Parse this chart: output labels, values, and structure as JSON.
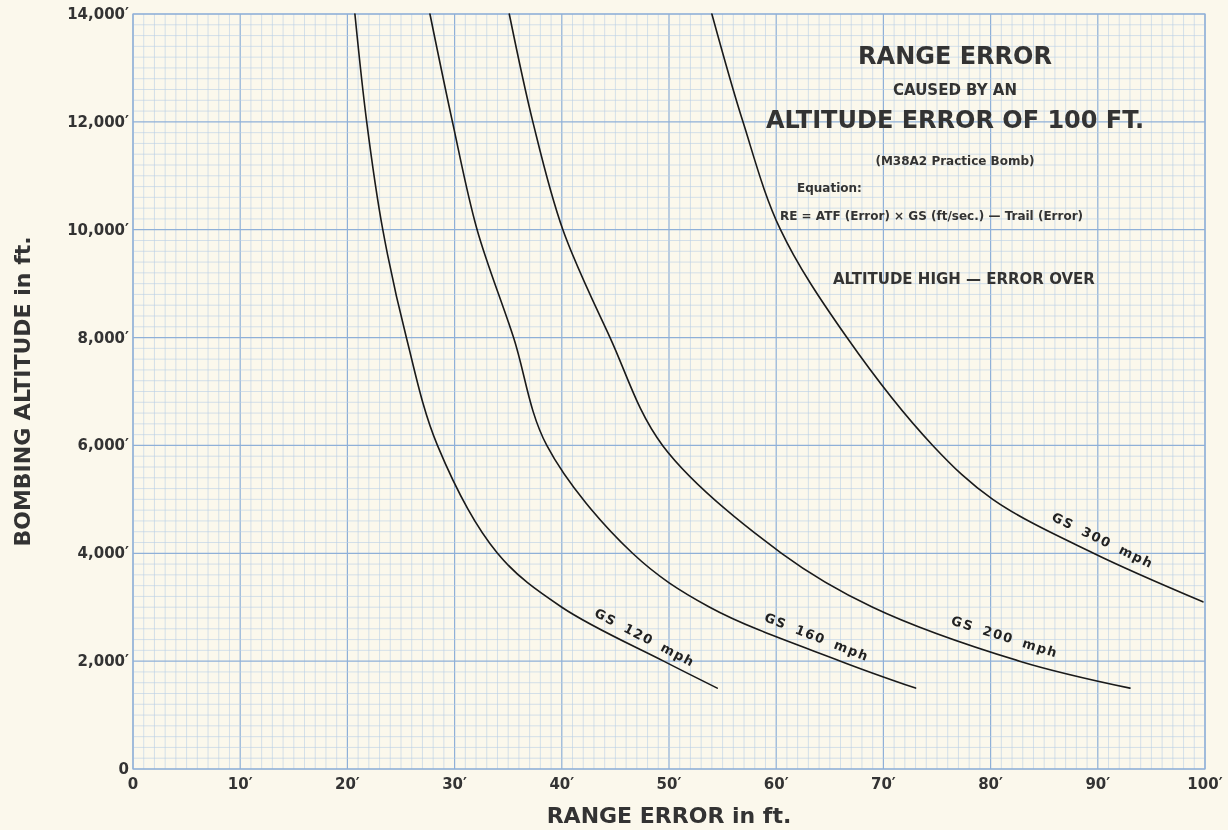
{
  "chart_data": {
    "type": "line",
    "title": "RANGE ERROR",
    "subtitle": "CAUSED BY AN",
    "xlabel": "RANGE ERROR in ft.",
    "ylabel": "BOMBING ALTITUDE in ft.",
    "annotations": [
      "ALTITUDE ERROR OF 100 FT.",
      "(M38A2 Practice Bomb)",
      "Equation:",
      "RE = ATF (Error) × GS (ft/sec.) — Trail (Error)",
      "ALTITUDE HIGH — ERROR OVER"
    ],
    "xlim": [
      0,
      100
    ],
    "ylim": [
      0,
      14000
    ],
    "xticks": [
      0,
      {
        "value": 1,
        "label": null
      },
      {
        "value": 2,
        "label": null
      },
      {
        "value": 3,
        "label": null
      },
      {
        "value": 4,
        "label": null
      },
      {
        "value": 5,
        "label": null
      },
      {
        "value": 6,
        "label": null
      },
      {
        "value": 7,
        "label": null
      },
      {
        "value": 8,
        "label": null
      },
      {
        "value": 9,
        "label": null
      },
      {
        "value": 10,
        "label": "10′"
      },
      {
        "value": 11,
        "label": null
      },
      {
        "value": 12,
        "label": null
      },
      {
        "value": 13,
        "label": null
      },
      {
        "value": 14,
        "label": null
      },
      {
        "value": 15,
        "label": null
      },
      {
        "value": 16,
        "label": null
      },
      {
        "value": 17,
        "label": null
      },
      {
        "value": 18,
        "label": null
      },
      {
        "value": 19,
        "label": null
      },
      {
        "value": 20,
        "label": "20′"
      },
      {
        "value": 21,
        "label": null
      },
      {
        "value": 22,
        "label": null
      },
      {
        "value": 23,
        "label": null
      },
      {
        "value": 24,
        "label": null
      },
      {
        "value": 25,
        "label": null
      },
      {
        "value": 26,
        "label": null
      },
      {
        "value": 27,
        "label": null
      },
      {
        "value": 28,
        "label": null
      },
      {
        "value": 29,
        "label": null
      },
      {
        "value": 30,
        "label": "30′"
      },
      {
        "value": 31,
        "label": null
      },
      {
        "value": 32,
        "label": null
      },
      {
        "value": 33,
        "label": null
      },
      {
        "value": 34,
        "label": null
      },
      {
        "value": 35,
        "label": null
      },
      {
        "value": 36,
        "label": null
      },
      {
        "value": 37,
        "label": null
      },
      {
        "value": 38,
        "label": null
      },
      {
        "value": 39,
        "label": null
      },
      {
        "value": 40,
        "label": "40′"
      },
      {
        "value": 41,
        "label": null
      },
      {
        "value": 42,
        "label": null
      },
      {
        "value": 43,
        "label": null
      },
      {
        "value": 44,
        "label": null
      },
      {
        "value": 45,
        "label": null
      },
      {
        "value": 46,
        "label": null
      },
      {
        "value": 47,
        "label": null
      },
      {
        "value": 48,
        "label": null
      },
      {
        "value": 49,
        "label": null
      },
      {
        "value": 50,
        "label": "50′"
      },
      {
        "value": 51,
        "label": null
      },
      {
        "value": 52,
        "label": null
      },
      {
        "value": 53,
        "label": null
      },
      {
        "value": 54,
        "label": null
      },
      {
        "value": 55,
        "label": null
      },
      {
        "value": 56,
        "label": null
      },
      {
        "value": 57,
        "label": null
      },
      {
        "value": 58,
        "label": null
      },
      {
        "value": 59,
        "label": null
      },
      {
        "value": 60,
        "label": "60′"
      },
      {
        "value": 61,
        "label": null
      },
      {
        "value": 62,
        "label": null
      },
      {
        "value": 63,
        "label": null
      },
      {
        "value": 64,
        "label": null
      },
      {
        "value": 65,
        "label": null
      },
      {
        "value": 66,
        "label": null
      },
      {
        "value": 67,
        "label": null
      },
      {
        "value": 68,
        "label": null
      },
      {
        "value": 69,
        "label": null
      },
      {
        "value": 70,
        "label": "70′"
      },
      {
        "value": 71,
        "label": null
      },
      {
        "value": 72,
        "label": null
      },
      {
        "value": 73,
        "label": null
      },
      {
        "value": 74,
        "label": null
      },
      {
        "value": 75,
        "label": null
      },
      {
        "value": 76,
        "label": null
      },
      {
        "value": 77,
        "label": null
      },
      {
        "value": 78,
        "label": null
      },
      {
        "value": 79,
        "label": null
      },
      {
        "value": 80,
        "label": "80′"
      },
      {
        "value": 81,
        "label": null
      },
      {
        "value": 82,
        "label": null
      },
      {
        "value": 83,
        "label": null
      },
      {
        "value": 84,
        "label": null
      },
      {
        "value": 85,
        "label": null
      },
      {
        "value": 86,
        "label": null
      },
      {
        "value": 87,
        "label": null
      },
      {
        "value": 88,
        "label": null
      },
      {
        "value": 89,
        "label": null
      },
      {
        "value": 90,
        "label": "90′"
      },
      {
        "value": 91,
        "label": null
      },
      {
        "value": 92,
        "label": null
      },
      {
        "value": 93,
        "label": null
      },
      {
        "value": 94,
        "label": null
      },
      {
        "value": 95,
        "label": null
      },
      {
        "value": 96,
        "label": null
      },
      {
        "value": 97,
        "label": null
      },
      {
        "value": 98,
        "label": null
      },
      {
        "value": 99,
        "label": null
      },
      {
        "value": 100,
        "label": "100′"
      }
    ],
    "yticks": [
      0,
      {
        "value": 200,
        "label": null
      },
      {
        "value": 400,
        "label": null
      },
      {
        "value": 600,
        "label": null
      },
      {
        "value": 800,
        "label": null
      },
      {
        "value": 1000,
        "label": null
      },
      {
        "value": 1200,
        "label": null
      },
      {
        "value": 1400,
        "label": null
      },
      {
        "value": 1600,
        "label": null
      },
      {
        "value": 1800,
        "label": null
      },
      {
        "value": 2000,
        "label": "2,000′"
      },
      {
        "value": 2200,
        "label": null
      },
      {
        "value": 2400,
        "label": null
      },
      {
        "value": 2600,
        "label": null
      },
      {
        "value": 2800,
        "label": null
      },
      {
        "value": 3000,
        "label": null
      },
      {
        "value": 3200,
        "label": null
      },
      {
        "value": 3400,
        "label": null
      },
      {
        "value": 3600,
        "label": null
      },
      {
        "value": 3800,
        "label": null
      },
      {
        "value": 4000,
        "label": "4,000′"
      },
      {
        "value": 4200,
        "label": null
      },
      {
        "value": 4400,
        "label": null
      },
      {
        "value": 4600,
        "label": null
      },
      {
        "value": 4800,
        "label": null
      },
      {
        "value": 5000,
        "label": null
      },
      {
        "value": 5200,
        "label": null
      },
      {
        "value": 5400,
        "label": null
      },
      {
        "value": 5600,
        "label": null
      },
      {
        "value": 5800,
        "label": null
      },
      {
        "value": 6000,
        "label": "6,000′"
      },
      {
        "value": 6200,
        "label": null
      },
      {
        "value": 6400,
        "label": null
      },
      {
        "value": 6600,
        "label": null
      },
      {
        "value": 6800,
        "label": null
      },
      {
        "value": 7000,
        "label": null
      },
      {
        "value": 7200,
        "label": null
      },
      {
        "value": 7400,
        "label": null
      },
      {
        "value": 7600,
        "label": null
      },
      {
        "value": 7800,
        "label": null
      },
      {
        "value": 8000,
        "label": "8,000′"
      },
      {
        "value": 8200,
        "label": null
      },
      {
        "value": 8400,
        "label": null
      },
      {
        "value": 8600,
        "label": null
      },
      {
        "value": 8800,
        "label": null
      },
      {
        "value": 9000,
        "label": null
      },
      {
        "value": 9200,
        "label": null
      },
      {
        "value": 9400,
        "label": null
      },
      {
        "value": 9600,
        "label": null
      },
      {
        "value": 9800,
        "label": null
      },
      {
        "value": 10000,
        "label": "10,000′"
      },
      {
        "value": 10200,
        "label": null
      },
      {
        "value": 10400,
        "label": null
      },
      {
        "value": 10600,
        "label": null
      },
      {
        "value": 10800,
        "label": null
      },
      {
        "value": 11000,
        "label": null
      },
      {
        "value": 11200,
        "label": null
      },
      {
        "value": 11400,
        "label": null
      },
      {
        "value": 11600,
        "label": null
      },
      {
        "value": 11800,
        "label": null
      },
      {
        "value": 12000,
        "label": "12,000′"
      },
      {
        "value": 12200,
        "label": null
      },
      {
        "value": 12400,
        "label": null
      },
      {
        "value": 12600,
        "label": null
      },
      {
        "value": 12800,
        "label": null
      },
      {
        "value": 13000,
        "label": null
      },
      {
        "value": 13200,
        "label": null
      },
      {
        "value": 13400,
        "label": null
      },
      {
        "value": 13600,
        "label": null
      },
      {
        "value": 13800,
        "label": null
      },
      {
        "value": 14000,
        "label": "14,000′"
      }
    ],
    "grid": true,
    "marker": "none",
    "line_style": "solid",
    "series": [
      {
        "name": "GS 120 mph",
        "color": "#1a1a1a",
        "x": [
          20.7,
          21.8,
          23.3,
          25.5,
          28.4,
          34,
          40,
          49.5,
          54.5
        ],
        "values": [
          14000,
          12000,
          10000,
          8000,
          6000,
          4000,
          3000,
          2000,
          1500
        ]
      },
      {
        "name": "GS 160 mph",
        "color": "#1a1a1a",
        "x": [
          27.7,
          29.8,
          32.1,
          35.5,
          38.6,
          46.6,
          53.8,
          66,
          73
        ],
        "values": [
          14000,
          12000,
          10000,
          8000,
          6000,
          4000,
          3000,
          2000,
          1500
        ]
      },
      {
        "name": "GS 200 mph",
        "color": "#1a1a1a",
        "x": [
          35.1,
          37.3,
          40.1,
          44.5,
          49.4,
          60.5,
          69,
          82.7,
          93
        ],
        "values": [
          14000,
          12000,
          10000,
          8000,
          6000,
          4000,
          3000,
          2000,
          1500
        ]
      },
      {
        "name": "GS 300 mph",
        "color": "#1a1a1a",
        "x": [
          54,
          56.9,
          60.4,
          66.6,
          74.6,
          80.2,
          89.6,
          99.8
        ],
        "values": [
          14000,
          12000,
          10000,
          8000,
          6000,
          5000,
          4000,
          3100
        ]
      }
    ]
  }
}
